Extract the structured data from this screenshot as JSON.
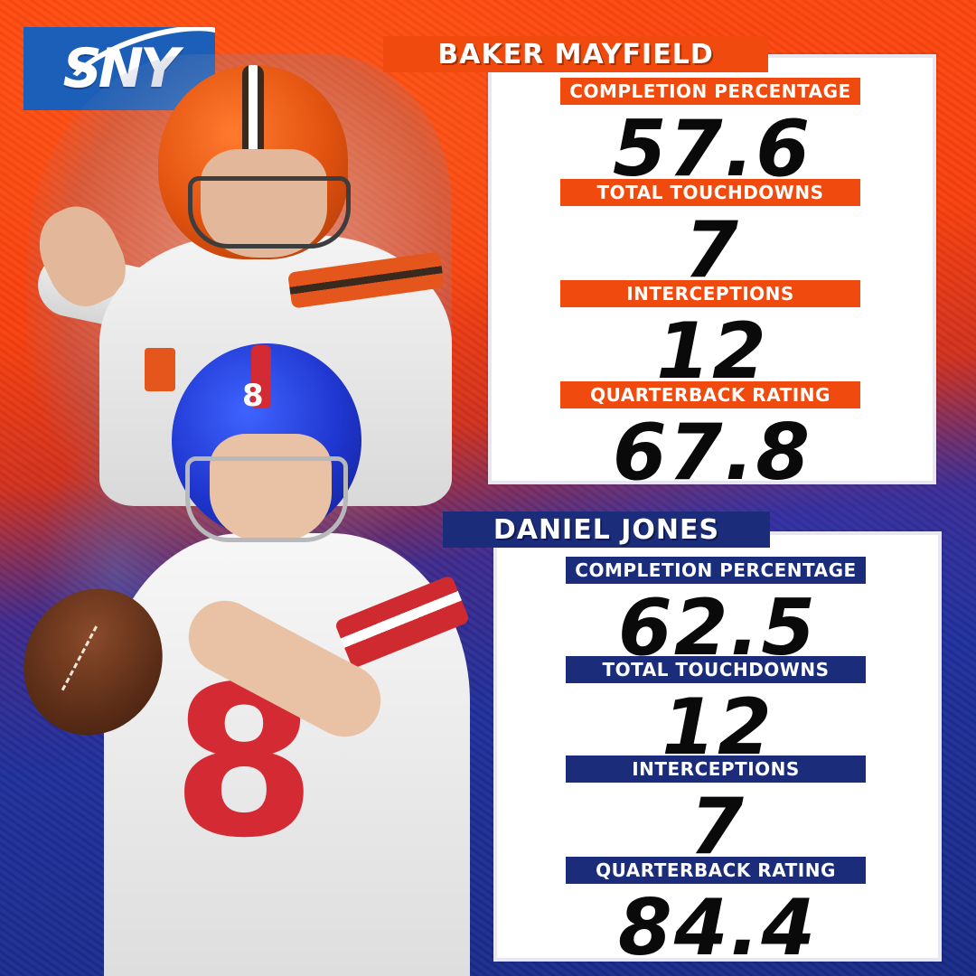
{
  "brand": {
    "logo_text": "SNY"
  },
  "colors": {
    "orange": "#f04a0e",
    "navy": "#1a2c7a",
    "giants_red": "#d42a33",
    "browns_brown": "#3a2a1e"
  },
  "players": [
    {
      "name": "BAKER MAYFIELD",
      "stats": [
        {
          "label": "COMPLETION PERCENTAGE",
          "value": "57.6"
        },
        {
          "label": "TOTAL TOUCHDOWNS",
          "value": "7"
        },
        {
          "label": "INTERCEPTIONS",
          "value": "12"
        },
        {
          "label": "QUARTERBACK RATING",
          "value": "67.8"
        }
      ]
    },
    {
      "name": "DANIEL JONES",
      "jersey_number": "8",
      "stats": [
        {
          "label": "COMPLETION PERCENTAGE",
          "value": "62.5"
        },
        {
          "label": "TOTAL TOUCHDOWNS",
          "value": "12"
        },
        {
          "label": "INTERCEPTIONS",
          "value": "7"
        },
        {
          "label": "QUARTERBACK RATING",
          "value": "84.4"
        }
      ]
    }
  ]
}
